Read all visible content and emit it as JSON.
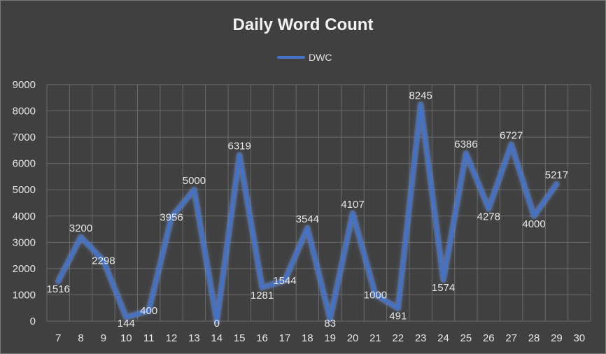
{
  "colors": {
    "background": "#404040",
    "line": "#4472c4",
    "glow": "#6b93e8",
    "grid": "#6a6a6a",
    "text": "#e6e6e6"
  },
  "chart_data": {
    "type": "line",
    "title": "Daily Word Count",
    "xlabel": "",
    "ylabel": "",
    "legend": {
      "position": "top",
      "entries": [
        "DWC"
      ]
    },
    "grid": true,
    "x": [
      7,
      8,
      9,
      10,
      11,
      12,
      13,
      14,
      15,
      16,
      17,
      18,
      19,
      20,
      21,
      22,
      23,
      24,
      25,
      26,
      27,
      28,
      29,
      30
    ],
    "x_ticks": [
      "7",
      "8",
      "9",
      "10",
      "11",
      "12",
      "13",
      "14",
      "15",
      "16",
      "17",
      "18",
      "19",
      "20",
      "21",
      "22",
      "23",
      "24",
      "25",
      "26",
      "27",
      "28",
      "29",
      "30"
    ],
    "ylim": [
      0,
      9000
    ],
    "y_ticks": [
      "0",
      "1000",
      "2000",
      "3000",
      "4000",
      "5000",
      "6000",
      "7000",
      "8000",
      "9000"
    ],
    "series": [
      {
        "name": "DWC",
        "x": [
          7,
          8,
          9,
          10,
          11,
          12,
          13,
          14,
          15,
          16,
          17,
          18,
          19,
          20,
          21,
          22,
          23,
          24,
          25,
          26,
          27,
          28,
          29
        ],
        "values": [
          1516,
          3200,
          2298,
          144,
          400,
          3956,
          5000,
          0,
          6319,
          1281,
          1544,
          3544,
          83,
          4107,
          1000,
          491,
          8245,
          1574,
          6386,
          4278,
          6727,
          4000,
          5217
        ],
        "labels": [
          "1516",
          "3200",
          "2298",
          "144",
          "400",
          "3956",
          "5000",
          "0",
          "6319",
          "1281",
          "1544",
          "3544",
          "83",
          "4107",
          "1000",
          "491",
          "8245",
          "1574",
          "6386",
          "4278",
          "6727",
          "4000",
          "5217"
        ]
      }
    ]
  }
}
